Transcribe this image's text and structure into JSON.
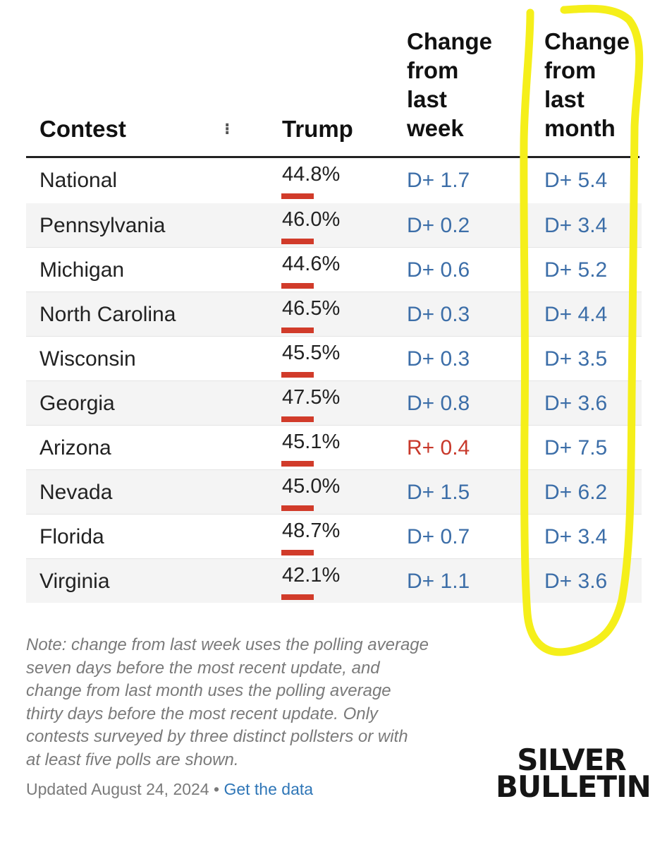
{
  "table": {
    "headers": {
      "contest": "Contest",
      "trump": "Trump",
      "week_lines": [
        "Change",
        "from",
        "last",
        "week"
      ],
      "month_lines": [
        "Change",
        "from",
        "last",
        "month"
      ]
    },
    "rows": [
      {
        "contest": "National",
        "trump": "44.8%",
        "week": "D+ 1.7",
        "month": "D+ 5.4"
      },
      {
        "contest": "Pennsylvania",
        "trump": "46.0%",
        "week": "D+ 0.2",
        "month": "D+ 3.4"
      },
      {
        "contest": "Michigan",
        "trump": "44.6%",
        "week": "D+ 0.6",
        "month": "D+ 5.2"
      },
      {
        "contest": "North Carolina",
        "trump": "46.5%",
        "week": "D+ 0.3",
        "month": "D+ 4.4"
      },
      {
        "contest": "Wisconsin",
        "trump": "45.5%",
        "week": "D+ 0.3",
        "month": "D+ 3.5"
      },
      {
        "contest": "Georgia",
        "trump": "47.5%",
        "week": "D+ 0.8",
        "month": "D+ 3.6"
      },
      {
        "contest": "Arizona",
        "trump": "45.1%",
        "week": "R+ 0.4",
        "month": "D+ 7.5"
      },
      {
        "contest": "Nevada",
        "trump": "45.0%",
        "week": "D+ 1.5",
        "month": "D+ 6.2"
      },
      {
        "contest": "Florida",
        "trump": "48.7%",
        "week": "D+ 0.7",
        "month": "D+ 3.4"
      },
      {
        "contest": "Virginia",
        "trump": "42.1%",
        "week": "D+ 1.1",
        "month": "D+ 3.6"
      }
    ]
  },
  "footer": {
    "note_lines": [
      "Note: change from last week uses the polling average",
      "seven days before the most recent update, and",
      "change from last month uses the polling average",
      "thirty days before the most recent update. Only",
      "contests surveyed by three distinct pollsters or with",
      "at least five polls are shown."
    ],
    "updated": "Updated August 24, 2024",
    "separator": "•",
    "data_link": "Get the data"
  },
  "logo": {
    "line1": "SILVER",
    "line2": "BULLETIN"
  },
  "colors": {
    "dem": "#3c6ea8",
    "rep": "#c8392b",
    "trump_bar": "#d13b2a",
    "highlight": "#f5ef1a"
  }
}
